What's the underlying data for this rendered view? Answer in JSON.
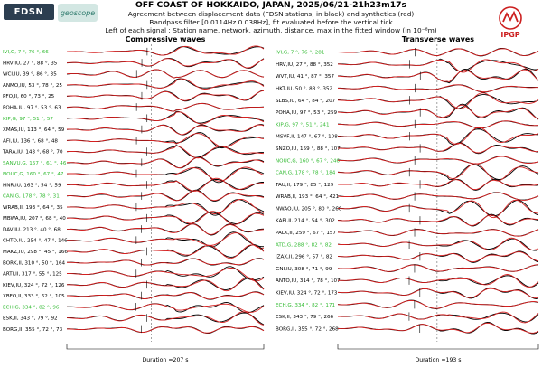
{
  "header": {
    "title": "OFF COAST OF HOKKAIDO, JAPAN, 2025/06/21-21h23m17s",
    "line1": "Agreement between displacement data (FDSN stations, in black) and synthetics (red)",
    "line2": "Bandpass filter [0.0114Hz 0.038Hz], fit evaluated before the vertical tick",
    "line3": "Left of each signal : Station name, network, azimuth, distance, max in the fitted window (in 10⁻⁸m)"
  },
  "logos": {
    "left1": "FDSN",
    "left2": "geoscope",
    "right": "IPGP"
  },
  "colors": {
    "data": "#000000",
    "synthetic": "#d62020",
    "highlight": "#33bb33",
    "text": "#000000"
  },
  "chart_data": [
    {
      "type": "line",
      "title": "Compressive waves",
      "duration_label": "Duration =207 s",
      "stations": [
        {
          "label": "IVI,G, 7 °, 76 °, 66",
          "green": true
        },
        {
          "label": "HRV,IU, 27 °, 88 °, 35",
          "green": false
        },
        {
          "label": "WCI,IU, 39 °, 86 °, 35",
          "green": false
        },
        {
          "label": "ANMO,IU, 53 °, 78 °, 25",
          "green": false
        },
        {
          "label": "PFO,II, 60 °, 73 °, 25",
          "green": false
        },
        {
          "label": "POHA,IU, 97 °, 53 °, 63",
          "green": false
        },
        {
          "label": "KIP,G, 97 °, 51 °, 57",
          "green": true
        },
        {
          "label": "XMAS,IU, 113 °, 64 °, 59",
          "green": false
        },
        {
          "label": "AFI,IU, 136 °, 68 °, 48",
          "green": false
        },
        {
          "label": "TARA,IU, 143 °, 68 °, 70",
          "green": false
        },
        {
          "label": "SANVU,G, 157 °, 61 °, 46",
          "green": true
        },
        {
          "label": "NOUC,G, 160 °, 67 °, 47",
          "green": true
        },
        {
          "label": "HNR,IU, 163 °, 54 °, 59",
          "green": false
        },
        {
          "label": "CAN,G, 178 °, 78 °, 31",
          "green": true
        },
        {
          "label": "WRAB,II, 193 °, 64 °, 35",
          "green": false
        },
        {
          "label": "MBWA,IU, 207 °, 68 °, 40",
          "green": false
        },
        {
          "label": "DAV,IU, 213 °, 40 °, 68",
          "green": false
        },
        {
          "label": "CHTO,IU, 254 °, 47 °, 146",
          "green": false
        },
        {
          "label": "MAKZ,IU, 298 °, 45 °, 166",
          "green": false
        },
        {
          "label": "BORK,II, 310 °, 50 °, 164",
          "green": false
        },
        {
          "label": "ARTI,II, 317 °, 55 °, 125",
          "green": false
        },
        {
          "label": "KIEV,IU, 324 °, 72 °, 126",
          "green": false
        },
        {
          "label": "XBFO,II, 333 °, 62 °, 105",
          "green": false
        },
        {
          "label": "ECH,G, 334 °, 82 °, 96",
          "green": true
        },
        {
          "label": "ESK,II, 343 °, 79 °, 92",
          "green": false
        },
        {
          "label": "BORG,II, 355 °, 72 °, 73",
          "green": false
        }
      ]
    },
    {
      "type": "line",
      "title": "Transverse waves",
      "duration_label": "Duration =193 s",
      "stations": [
        {
          "label": "IVI,G, 7 °, 76 °, 281",
          "green": true
        },
        {
          "label": "HRV,IU, 27 °, 88 °, 352",
          "green": false
        },
        {
          "label": "WVT,IU, 41 °, 87 °, 357",
          "green": false
        },
        {
          "label": "HKT,IU, 50 °, 88 °, 352",
          "green": false
        },
        {
          "label": "SLBS,IU, 64 °, 84 °, 207",
          "green": false
        },
        {
          "label": "POHA,IU, 97 °, 53 °, 259",
          "green": false
        },
        {
          "label": "KIP,G, 97 °, 51 °, 241",
          "green": true
        },
        {
          "label": "MSVF,II, 147 °, 67 °, 108",
          "green": false
        },
        {
          "label": "SNZO,IU, 159 °, 88 °, 107",
          "green": false
        },
        {
          "label": "NOUC,G, 160 °, 67 °, 246",
          "green": true
        },
        {
          "label": "CAN,G, 178 °, 78 °, 184",
          "green": true
        },
        {
          "label": "TAU,II, 179 °, 85 °, 129",
          "green": false
        },
        {
          "label": "WRAB,II, 193 °, 64 °, 421",
          "green": false
        },
        {
          "label": "NWAO,IU, 205 °, 80 °, 266",
          "green": false
        },
        {
          "label": "KAPI,II, 214 °, 54 °, 302",
          "green": false
        },
        {
          "label": "PALK,II, 259 °, 67 °, 157",
          "green": false
        },
        {
          "label": "ATD,G, 288 °, 82 °, 82",
          "green": true
        },
        {
          "label": "JZAX,II, 296 °, 57 °, 82",
          "green": false
        },
        {
          "label": "GNI,IU, 308 °, 71 °, 99",
          "green": false
        },
        {
          "label": "ANTO,IU, 314 °, 78 °, 107",
          "green": false
        },
        {
          "label": "KIEV,IU, 324 °, 72 °, 173",
          "green": false
        },
        {
          "label": "ECH,G, 334 °, 82 °, 171",
          "green": true
        },
        {
          "label": "ESK,II, 343 °, 79 °, 266",
          "green": false
        },
        {
          "label": "BORG,II, 355 °, 72 °, 268",
          "green": false
        }
      ]
    }
  ]
}
